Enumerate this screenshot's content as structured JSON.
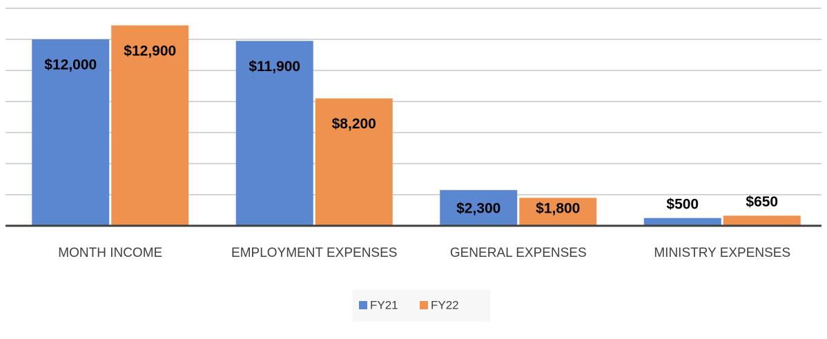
{
  "chart_data": {
    "type": "bar",
    "categories": [
      "MONTH INCOME",
      "EMPLOYMENT EXPENSES",
      "GENERAL EXPENSES",
      "MINISTRY EXPENSES"
    ],
    "series": [
      {
        "name": "FY21",
        "color": "#5b87d1",
        "values": [
          12000,
          11900,
          2300,
          500
        ],
        "value_labels": [
          "$12,000",
          "$11,900",
          "$2,300",
          "$500"
        ]
      },
      {
        "name": "FY22",
        "color": "#f0924f",
        "values": [
          12900,
          8200,
          1800,
          650
        ],
        "value_labels": [
          "$12,900",
          "$8,200",
          "$1,800",
          "$650"
        ]
      }
    ],
    "ylim": [
      0,
      14000
    ],
    "yticks": [
      0,
      2000,
      4000,
      6000,
      8000,
      10000,
      12000,
      14000
    ],
    "grid": true,
    "legend": "bottom"
  }
}
